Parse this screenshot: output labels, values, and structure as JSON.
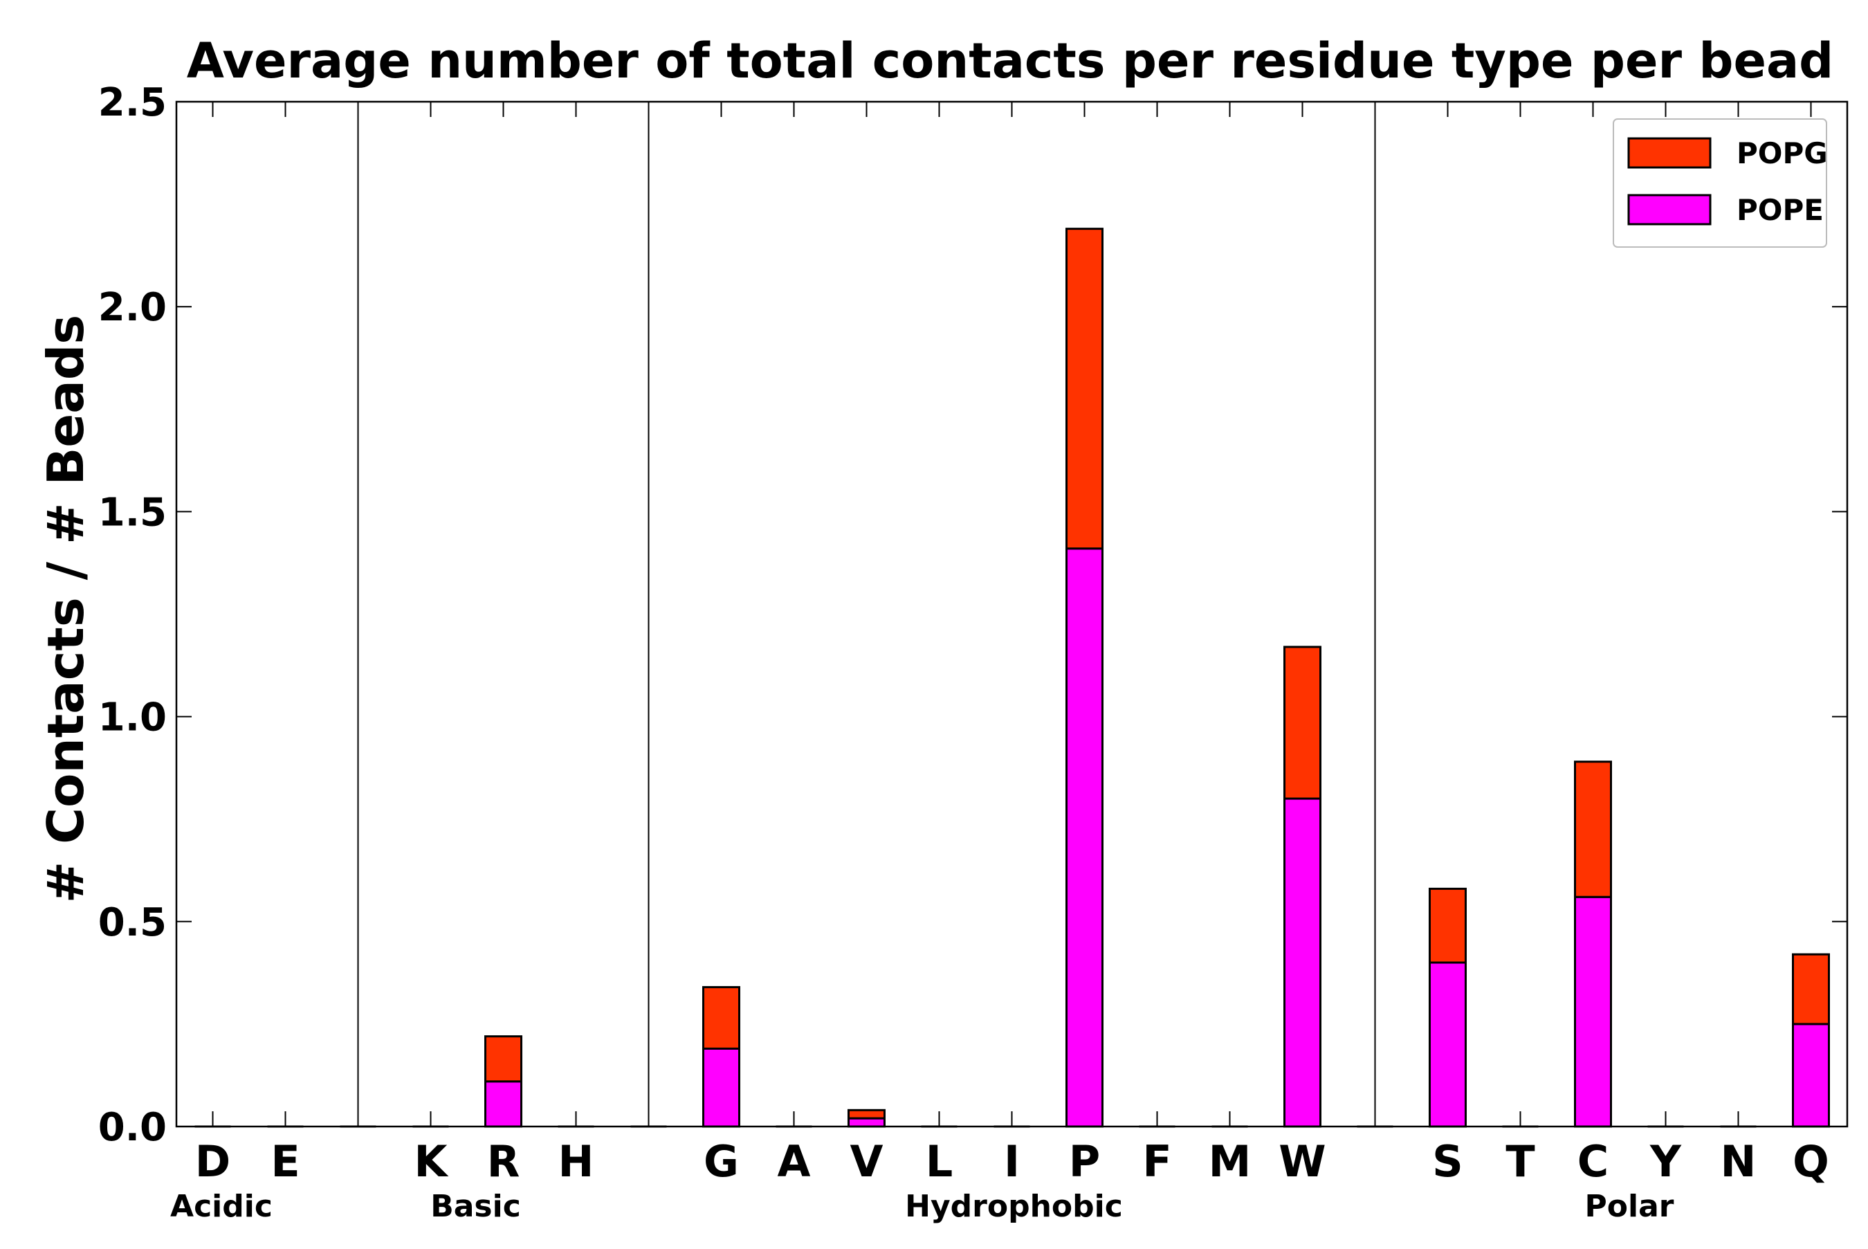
{
  "chart_data": {
    "type": "bar",
    "stacked": true,
    "title": "Average number of total contacts per residue type per bead",
    "xlabel": "",
    "ylabel": "# Contacts / # Beads",
    "ylim": [
      0.0,
      2.5
    ],
    "yticks": [
      "0.0",
      "0.5",
      "1.0",
      "1.5",
      "2.0",
      "2.5"
    ],
    "yticks_values": [
      0.0,
      0.5,
      1.0,
      1.5,
      2.0,
      2.5
    ],
    "categories": [
      "D",
      "E",
      "",
      "K",
      "R",
      "H",
      "",
      "G",
      "A",
      "V",
      "L",
      "I",
      "P",
      "F",
      "M",
      "W",
      "",
      "S",
      "T",
      "C",
      "Y",
      "N",
      "Q"
    ],
    "groups": [
      {
        "label": "Acidic",
        "members": [
          "D",
          "E"
        ]
      },
      {
        "label": "Basic",
        "members": [
          "K",
          "R",
          "H"
        ]
      },
      {
        "label": "Hydrophobic",
        "members": [
          "G",
          "A",
          "V",
          "L",
          "I",
          "P",
          "F",
          "M",
          "W"
        ]
      },
      {
        "label": "Polar",
        "members": [
          "S",
          "T",
          "C",
          "Y",
          "N",
          "Q"
        ]
      }
    ],
    "series": [
      {
        "name": "POPE",
        "color": "#ff00ff",
        "values": [
          0,
          0,
          0,
          0,
          0.11,
          0,
          0,
          0.19,
          0,
          0.02,
          0,
          0,
          1.41,
          0,
          0,
          0.8,
          0,
          0.4,
          0,
          0.56,
          0,
          0,
          0.25
        ]
      },
      {
        "name": "POPG",
        "color": "#ff3300",
        "values": [
          0,
          0,
          0,
          0,
          0.11,
          0,
          0,
          0.15,
          0,
          0.02,
          0,
          0,
          0.78,
          0,
          0,
          0.37,
          0,
          0.18,
          0,
          0.33,
          0,
          0,
          0.17
        ]
      }
    ],
    "legend": {
      "position": "top-right",
      "order": [
        "POPG",
        "POPE"
      ]
    },
    "grid": false
  }
}
